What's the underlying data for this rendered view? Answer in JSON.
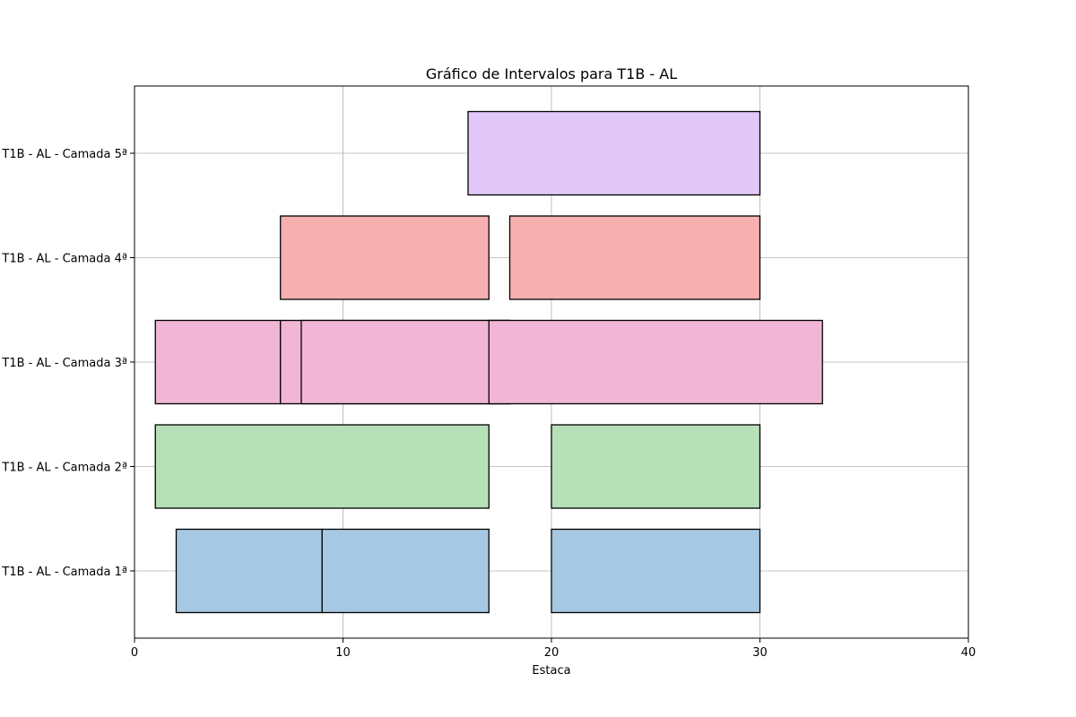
{
  "chart_data": {
    "type": "bar",
    "orientation": "horizontal",
    "title": "Gráfico de Intervalos para T1B - AL",
    "xlabel": "Estaca",
    "ylabel": "",
    "xlim": [
      0,
      40
    ],
    "xticks": [
      "0",
      "10",
      "20",
      "30",
      "40"
    ],
    "grid": true,
    "categories": [
      "T1B - AL - Camada 1ª",
      "T1B - AL - Camada 2ª",
      "T1B - AL - Camada 3ª",
      "T1B - AL - Camada 4ª",
      "T1B - AL - Camada 5ª"
    ],
    "series": [
      {
        "category": "T1B - AL - Camada 1ª",
        "color": "#a6c8e2",
        "intervals": [
          [
            2,
            9
          ],
          [
            9,
            17
          ],
          [
            20,
            30
          ]
        ]
      },
      {
        "category": "T1B - AL - Camada 2ª",
        "color": "#b8e0b8",
        "intervals": [
          [
            1,
            17
          ],
          [
            20,
            30
          ]
        ]
      },
      {
        "category": "T1B - AL - Camada 3ª",
        "color": "#f1b5d5",
        "intervals": [
          [
            1,
            7
          ],
          [
            7,
            18
          ],
          [
            8,
            18
          ],
          [
            17,
            33
          ]
        ]
      },
      {
        "category": "T1B - AL - Camada 4ª",
        "color": "#f7b0b0",
        "intervals": [
          [
            7,
            17
          ],
          [
            18,
            30
          ]
        ]
      },
      {
        "category": "T1B - AL - Camada 5ª",
        "color": "#e2c8f8",
        "intervals": [
          [
            16,
            30
          ]
        ]
      }
    ]
  }
}
